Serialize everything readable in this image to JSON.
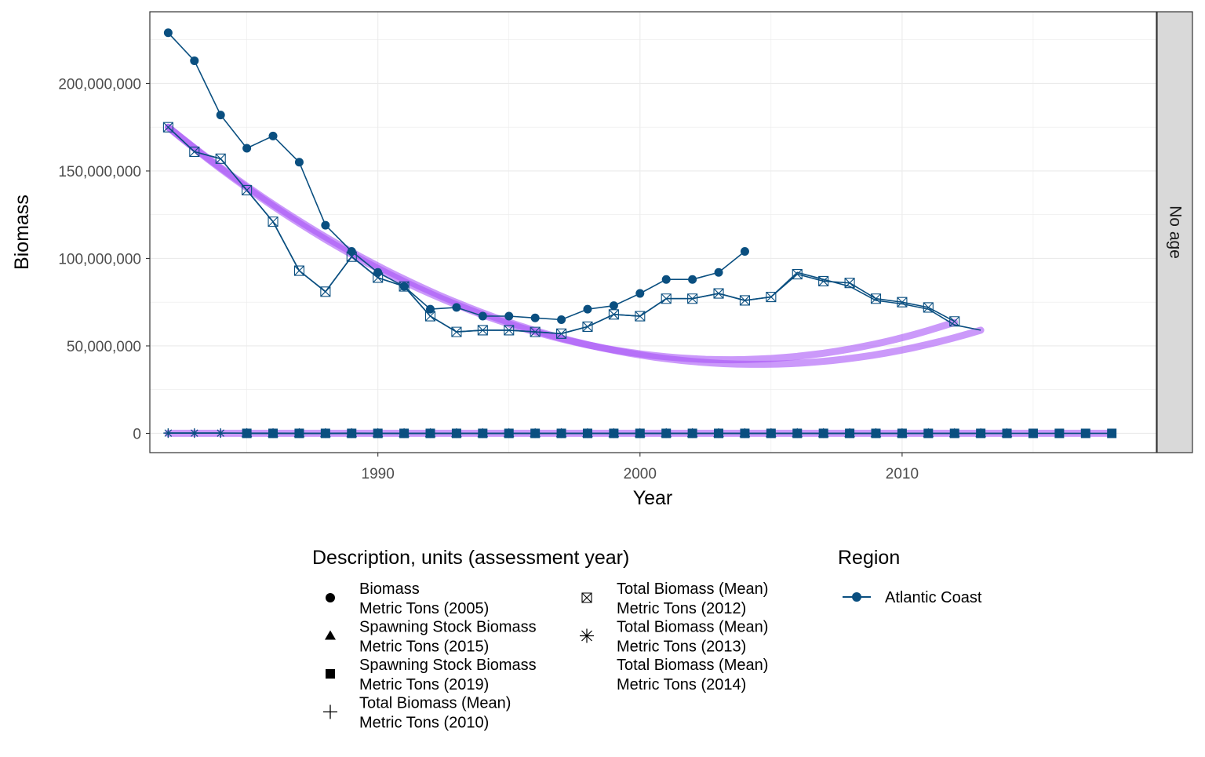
{
  "chart_data": {
    "type": "line",
    "xlabel": "Year",
    "ylabel": "Biomass",
    "xlim": [
      1981.3,
      2019.7
    ],
    "ylim": [
      -11000000,
      241000000
    ],
    "x_ticks": [
      1990,
      2000,
      2010
    ],
    "y_ticks": [
      0,
      50000000,
      100000000,
      150000000,
      200000000
    ],
    "y_tick_labels": [
      "0",
      "50,000,000",
      "100,000,000",
      "150,000,000",
      "200,000,000"
    ],
    "grid": true,
    "facet_label": "No age",
    "legend_shape_title": "Description, units (assessment year)",
    "legend_color_title": "Region",
    "legend_position": "bottom",
    "series": [
      {
        "name": "Biomass\nMetric Tons (2005)",
        "legend_lines": [
          "Biomass",
          "Metric Tons (2005)"
        ],
        "shape": "circle",
        "x": [
          1982,
          1983,
          1984,
          1985,
          1986,
          1987,
          1988,
          1989,
          1990,
          1991,
          1992,
          1993,
          1994,
          1995,
          1996,
          1997,
          1998,
          1999,
          2000,
          2001,
          2002,
          2003,
          2004
        ],
        "y": [
          229000000,
          213000000,
          182000000,
          163000000,
          170000000,
          155000000,
          119000000,
          104000000,
          92000000,
          84000000,
          71000000,
          72000000,
          67000000,
          67000000,
          66000000,
          65000000,
          71000000,
          73000000,
          80000000,
          88000000,
          88000000,
          92000000,
          104000000
        ]
      },
      {
        "name": "Spawning Stock Biomass\nMetric Tons (2015)",
        "legend_lines": [
          "Spawning Stock Biomass",
          "Metric Tons (2015)"
        ],
        "shape": "triangle",
        "x": [
          1985,
          1986,
          1987,
          1988,
          1989,
          1990,
          1991,
          1992,
          1993,
          1994,
          1995,
          1996,
          1997,
          1998,
          1999,
          2000,
          2001,
          2002,
          2003,
          2004,
          2005,
          2006,
          2007,
          2008,
          2009,
          2010,
          2011,
          2012,
          2013,
          2014
        ],
        "y": [
          15000,
          16000,
          15000,
          14000,
          13000,
          12000,
          12000,
          11000,
          11000,
          11000,
          11000,
          11000,
          12000,
          12000,
          13000,
          13000,
          14000,
          14000,
          14000,
          15000,
          15000,
          16000,
          16000,
          15000,
          15000,
          14000,
          14000,
          14000,
          14000,
          14000
        ]
      },
      {
        "name": "Spawning Stock Biomass\nMetric Tons (2019)",
        "legend_lines": [
          "Spawning Stock Biomass",
          "Metric Tons (2019)"
        ],
        "shape": "square",
        "x": [
          1985,
          1986,
          1987,
          1988,
          1989,
          1990,
          1991,
          1992,
          1993,
          1994,
          1995,
          1996,
          1997,
          1998,
          1999,
          2000,
          2001,
          2002,
          2003,
          2004,
          2005,
          2006,
          2007,
          2008,
          2009,
          2010,
          2011,
          2012,
          2013,
          2014,
          2015,
          2016,
          2017,
          2018
        ],
        "y": [
          16000,
          17000,
          16000,
          15000,
          14000,
          13000,
          13000,
          12000,
          12000,
          12000,
          12000,
          12000,
          13000,
          13000,
          14000,
          14000,
          15000,
          15000,
          15000,
          16000,
          16000,
          17000,
          17000,
          16000,
          16000,
          15000,
          15000,
          15000,
          15000,
          15000,
          15000,
          15000,
          15000,
          15000
        ]
      },
      {
        "name": "Total Biomass (Mean)\nMetric Tons (2010)",
        "legend_lines": [
          "Total Biomass (Mean)",
          "Metric Tons (2010)"
        ],
        "shape": "plus",
        "x": [
          1982,
          1983,
          1984,
          1985,
          1986,
          1987,
          1988,
          1989,
          1990,
          1991,
          1992,
          1993,
          1994,
          1995,
          1996,
          1997,
          1998,
          1999,
          2000,
          2001,
          2002,
          2003,
          2004,
          2005,
          2006,
          2007,
          2008,
          2009
        ],
        "y": [
          175000,
          161000,
          157000,
          139000,
          121000,
          93000,
          81000,
          101000,
          89000,
          84000,
          67000,
          58000,
          59000,
          59000,
          58000,
          57000,
          61000,
          68000,
          67000,
          77000,
          77000,
          80000,
          76000,
          78000,
          91000,
          87000,
          86000,
          77000
        ]
      },
      {
        "name": "Total Biomass (Mean)\nMetric Tons (2012)",
        "legend_lines": [
          "Total Biomass (Mean)",
          "Metric Tons (2012)"
        ],
        "shape": "boxcross",
        "x": [
          1982,
          1983,
          1984,
          1985,
          1986,
          1987,
          1988,
          1989,
          1990,
          1991,
          1992,
          1993,
          1994,
          1995,
          1996,
          1997,
          1998,
          1999,
          2000,
          2001,
          2002,
          2003,
          2004,
          2005,
          2006,
          2007,
          2008,
          2009,
          2010,
          2011,
          2012
        ],
        "y": [
          175000000,
          161000000,
          157000000,
          139000000,
          121000000,
          93000000,
          81000000,
          101000000,
          89000000,
          84000000,
          67000000,
          58000000,
          59000000,
          59000000,
          58000000,
          57000000,
          61000000,
          68000000,
          67000000,
          77000000,
          77000000,
          80000000,
          76000000,
          78000000,
          91000000,
          87000000,
          86000000,
          77000000,
          75000000,
          72000000,
          64000000
        ]
      },
      {
        "name": "Total Biomass (Mean)\nMetric Tons (2013)",
        "legend_lines": [
          "Total Biomass (Mean)",
          "Metric Tons (2013)"
        ],
        "shape": "asterisk",
        "x": [
          1982,
          1983,
          1984
        ],
        "y": [
          175000,
          161000,
          157000
        ]
      },
      {
        "name": "Total Biomass (Mean)\nMetric Tons (2014)",
        "legend_lines": [
          "Total Biomass (Mean)",
          "Metric Tons (2014)"
        ],
        "shape": "none",
        "x": [
          1982,
          1983,
          1984,
          1985,
          1986,
          1987,
          1988,
          1989,
          1990,
          1991,
          1992,
          1993,
          1994,
          1995,
          1996,
          1997,
          1998,
          1999,
          2000,
          2001,
          2002,
          2003,
          2004,
          2005,
          2006,
          2007,
          2008,
          2009,
          2010,
          2011,
          2012,
          2013
        ],
        "y": [
          175000000,
          161000000,
          157000000,
          139000000,
          121000000,
          93000000,
          81000000,
          101000000,
          89000000,
          84000000,
          67000000,
          58000000,
          59000000,
          59000000,
          58000000,
          57000000,
          61000000,
          68000000,
          67000000,
          77000000,
          77000000,
          80000000,
          76000000,
          78000000,
          92000000,
          88000000,
          84000000,
          76000000,
          74000000,
          71000000,
          62000000,
          59000000
        ]
      }
    ],
    "smooth_trends": [
      {
        "x_range": [
          1982,
          2013
        ],
        "y": [
          175000000,
          52500000,
          59000000
        ]
      },
      {
        "x_range": [
          1982,
          2012
        ],
        "y": [
          175000000,
          54000000,
          63500000
        ]
      },
      {
        "x_range": [
          1982,
          2018
        ],
        "y": [
          10000,
          10000,
          10000
        ]
      }
    ],
    "region": {
      "name": "Atlantic Coast",
      "color": "#0a4f80"
    },
    "trend_color": "#a855f7",
    "panel_border_color": "#333333",
    "strip_fill": "#d9d9d9",
    "grid_color": "#ebebeb"
  }
}
